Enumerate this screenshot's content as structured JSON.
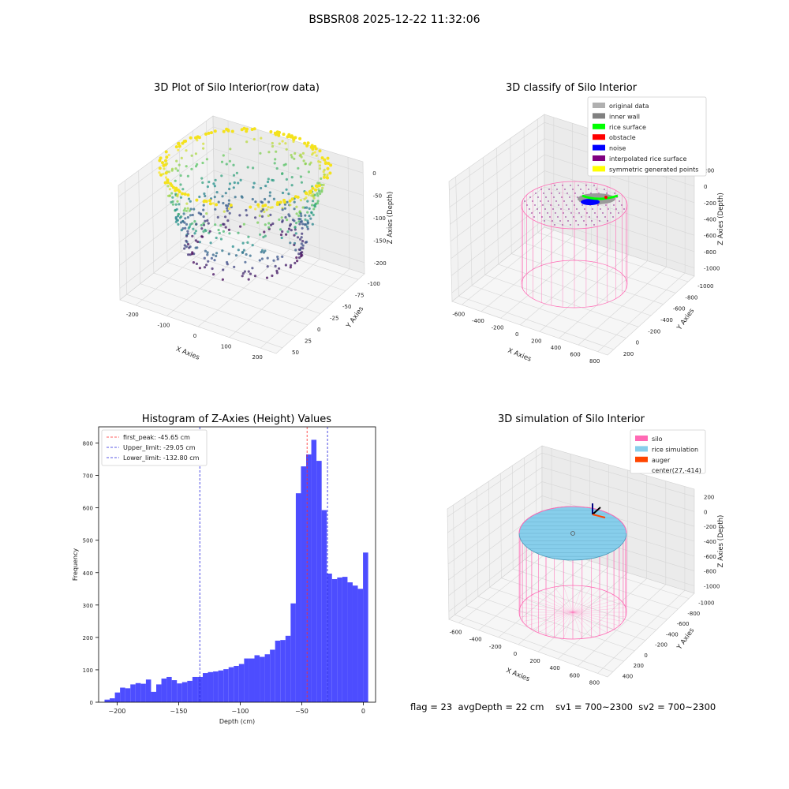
{
  "figure": {
    "suptitle": "BSBSR08 2025-12-22 11:32:06",
    "status": {
      "flag": "flag = 23",
      "avg_depth": "avgDepth = 22 cm",
      "sv1": "sv1 = 700~2300",
      "sv2": "sv2 = 700~2300"
    }
  },
  "colors": {
    "hist_bar": "#4d4dff",
    "first_peak": "#ff2a2a",
    "limits": "#2222dd",
    "silo": "#ff69b4",
    "rice_simulation": "#87ceeb",
    "auger": "#ff4500"
  },
  "chart_data": [
    {
      "id": "raw",
      "type": "scatter",
      "title": "3D Plot of Silo Interior(row data)",
      "xlabel": "X Axies",
      "ylabel": "Y Axies",
      "zlabel": "Z Axies (Depth)",
      "xticks": [
        "-200",
        "-100",
        "0",
        "100",
        "200"
      ],
      "yticks": [
        "-100",
        "-75",
        "-50",
        "-25",
        "0",
        "25",
        "50"
      ],
      "zticks": [
        "0",
        "-50",
        "-100",
        "-150",
        "-200"
      ],
      "xlim": [
        -230,
        230
      ],
      "ylim": [
        -110,
        60
      ],
      "zlim": [
        -220,
        0
      ],
      "colormap": "viridis"
    },
    {
      "id": "classify",
      "type": "scatter",
      "title": "3D classify of Silo Interior",
      "xlabel": "X Axies",
      "ylabel": "Y Axies",
      "zlabel": "Z Axies (Depth)",
      "xticks": [
        "-600",
        "-400",
        "-200",
        "0",
        "200",
        "400",
        "600",
        "800"
      ],
      "yticks": [
        "-1000",
        "-800",
        "-600",
        "-400",
        "-200",
        "0",
        "200"
      ],
      "zticks": [
        "200",
        "0",
        "-200",
        "-400",
        "-600",
        "-800",
        "-1000"
      ],
      "legend_location": "upper right",
      "legend": [
        {
          "label": "original data",
          "color": "#b0b0b0"
        },
        {
          "label": "inner wall",
          "color": "#808080"
        },
        {
          "label": "rice surface",
          "color": "#00ff00"
        },
        {
          "label": "obstacle",
          "color": "#ff0000"
        },
        {
          "label": "noise",
          "color": "#0000ff"
        },
        {
          "label": "interpolated rice surface",
          "color": "#800080"
        },
        {
          "label": "symmetric generated points",
          "color": "#ffff00"
        }
      ]
    },
    {
      "id": "histogram",
      "type": "bar",
      "title": "Histogram of Z-Axies (Height) Values",
      "xlabel": "Depth (cm)",
      "ylabel": "Frequency",
      "xlim": [
        -215,
        10
      ],
      "ylim": [
        0,
        850
      ],
      "xticks": [
        -200,
        -150,
        -100,
        -50,
        0
      ],
      "yticks": [
        0,
        100,
        200,
        300,
        400,
        500,
        600,
        700,
        800
      ],
      "bin_start": -210.2,
      "bin_width": 4.2,
      "values": [
        8,
        12,
        30,
        45,
        43,
        55,
        59,
        57,
        70,
        32,
        55,
        73,
        78,
        68,
        58,
        62,
        66,
        78,
        78,
        90,
        93,
        95,
        98,
        102,
        108,
        112,
        118,
        135,
        135,
        145,
        140,
        148,
        162,
        190,
        192,
        205,
        305,
        645,
        728,
        765,
        810,
        745,
        593,
        397,
        380,
        385,
        387,
        370,
        360,
        350,
        462
      ],
      "vlines": [
        {
          "label": "first_peak: -45.65 cm",
          "x": -45.65,
          "color": "#ff2a2a"
        },
        {
          "label": "Upper_limit: -29.05 cm",
          "x": -29.05,
          "color": "#2222dd"
        },
        {
          "label": "Lower_limit: -132.80 cm",
          "x": -132.8,
          "color": "#2222dd"
        }
      ],
      "legend_location": "upper left"
    },
    {
      "id": "simulation",
      "type": "scatter",
      "title": "3D simulation of Silo Interior",
      "xlabel": "X Axies",
      "ylabel": "Y Axies",
      "zlabel": "Z Axies (Depth)",
      "xticks": [
        "-600",
        "-400",
        "-200",
        "0",
        "200",
        "400",
        "600",
        "800"
      ],
      "yticks": [
        "-1000",
        "-800",
        "-600",
        "-400",
        "-200",
        "0",
        "200",
        "400"
      ],
      "zticks": [
        "200",
        "0",
        "-200",
        "-400",
        "-600",
        "-800",
        "-1000"
      ],
      "legend_location": "upper right",
      "legend": [
        {
          "label": "silo",
          "color": "#ff69b4"
        },
        {
          "label": "rice simulation",
          "color": "#87ceeb"
        },
        {
          "label": "auger",
          "color": "#ff4500"
        },
        {
          "label": "center(27,-414)",
          "color": ""
        }
      ]
    }
  ]
}
